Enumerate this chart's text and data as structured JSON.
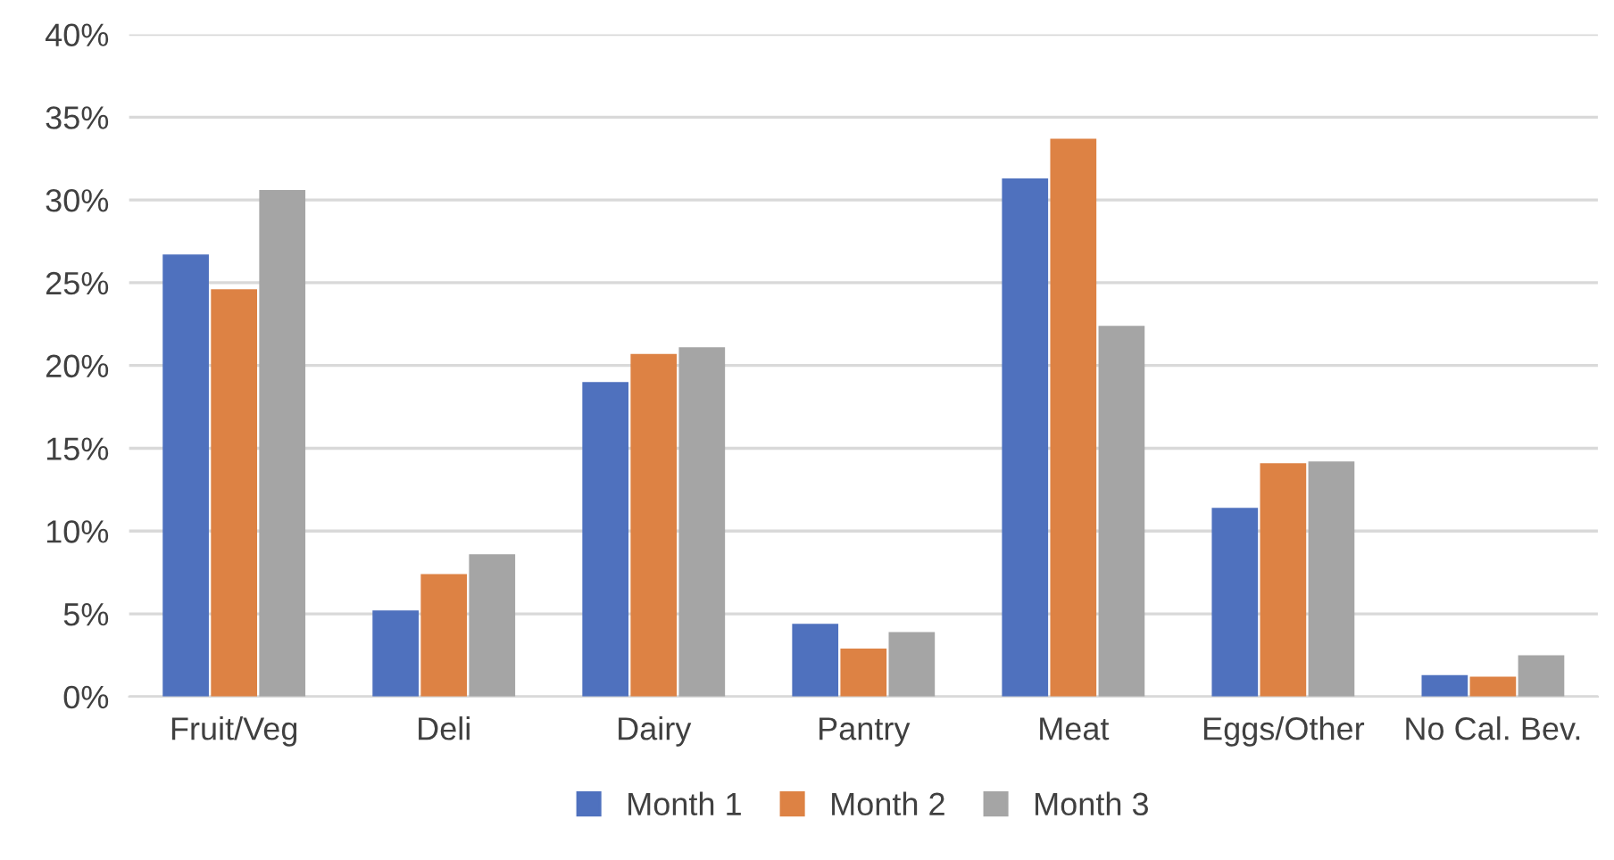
{
  "chart_data": {
    "type": "bar",
    "categories": [
      "Fruit/Veg",
      "Deli",
      "Dairy",
      "Pantry",
      "Meat",
      "Eggs/Other",
      "No Cal. Bev."
    ],
    "series": [
      {
        "name": "Month 1",
        "color": "#4f71be",
        "values": [
          26.7,
          5.2,
          19.0,
          4.4,
          31.3,
          11.4,
          1.3
        ]
      },
      {
        "name": "Month 2",
        "color": "#dd8244",
        "values": [
          24.6,
          7.4,
          20.7,
          2.9,
          33.7,
          14.1,
          1.2
        ]
      },
      {
        "name": "Month 3",
        "color": "#a5a5a5",
        "values": [
          30.6,
          8.6,
          21.1,
          3.9,
          22.4,
          14.2,
          2.5
        ]
      }
    ],
    "ylim": [
      0,
      40
    ],
    "yticks": [
      {
        "value": 0,
        "label": "0%"
      },
      {
        "value": 5,
        "label": "5%"
      },
      {
        "value": 10,
        "label": "10%"
      },
      {
        "value": 15,
        "label": "15%"
      },
      {
        "value": 20,
        "label": "20%"
      },
      {
        "value": 25,
        "label": "25%"
      },
      {
        "value": 30,
        "label": "30%"
      },
      {
        "value": 35,
        "label": "35%"
      },
      {
        "value": 40,
        "label": "40%"
      }
    ],
    "grid": "y",
    "legend": "bottom"
  }
}
